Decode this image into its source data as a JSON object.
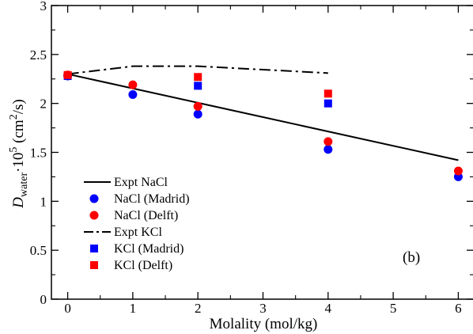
{
  "chart_data": {
    "type": "line",
    "title": "",
    "xlabel": "Molality (mol/kg)",
    "ylabel": {
      "symbol": "D",
      "subscript": "water",
      "times": "·10",
      "exponent": "5",
      "units_prefix": " (cm",
      "units_exponent": "2",
      "units_suffix": "/s)"
    },
    "xlim": [
      -0.25,
      6.25
    ],
    "ylim": [
      0,
      3
    ],
    "xticks": [
      0,
      1,
      2,
      3,
      4,
      5,
      6
    ],
    "xtick_labels": [
      "0",
      "1",
      "2",
      "3",
      "4",
      "5",
      "6"
    ],
    "yticks": [
      0,
      0.5,
      1,
      1.5,
      2,
      2.5,
      3
    ],
    "ytick_labels": [
      "0",
      "0.5",
      "1",
      "1.5",
      "2",
      "2.5",
      "3"
    ],
    "grid": false,
    "legend_position": "bottom-left",
    "annotation": "(b)",
    "series": [
      {
        "name": "Expt NaCl",
        "kind": "line",
        "style": "solid",
        "color": "#000000",
        "x": [
          0,
          6
        ],
        "y": [
          2.3,
          1.42
        ]
      },
      {
        "name": "NaCl (Madrid)",
        "kind": "scatter",
        "marker": "circle",
        "color": "#0000ff",
        "x": [
          0,
          1,
          2,
          4,
          6
        ],
        "y": [
          2.28,
          2.09,
          1.89,
          1.53,
          1.25
        ]
      },
      {
        "name": "NaCl (Delft)",
        "kind": "scatter",
        "marker": "circle",
        "color": "#ff0000",
        "x": [
          0,
          1,
          2,
          4,
          6
        ],
        "y": [
          2.29,
          2.19,
          1.97,
          1.61,
          1.31
        ]
      },
      {
        "name": "Expt KCl",
        "kind": "line",
        "style": "dashdot",
        "color": "#000000",
        "x": [
          0,
          1,
          2,
          4
        ],
        "y": [
          2.3,
          2.38,
          2.38,
          2.31
        ]
      },
      {
        "name": "KCl (Madrid)",
        "kind": "scatter",
        "marker": "square",
        "color": "#0000ff",
        "x": [
          0,
          2,
          4
        ],
        "y": [
          2.28,
          2.18,
          2.0
        ]
      },
      {
        "name": "KCl (Delft)",
        "kind": "scatter",
        "marker": "square",
        "color": "#ff0000",
        "x": [
          0,
          2,
          4
        ],
        "y": [
          2.29,
          2.27,
          2.1
        ]
      }
    ]
  }
}
